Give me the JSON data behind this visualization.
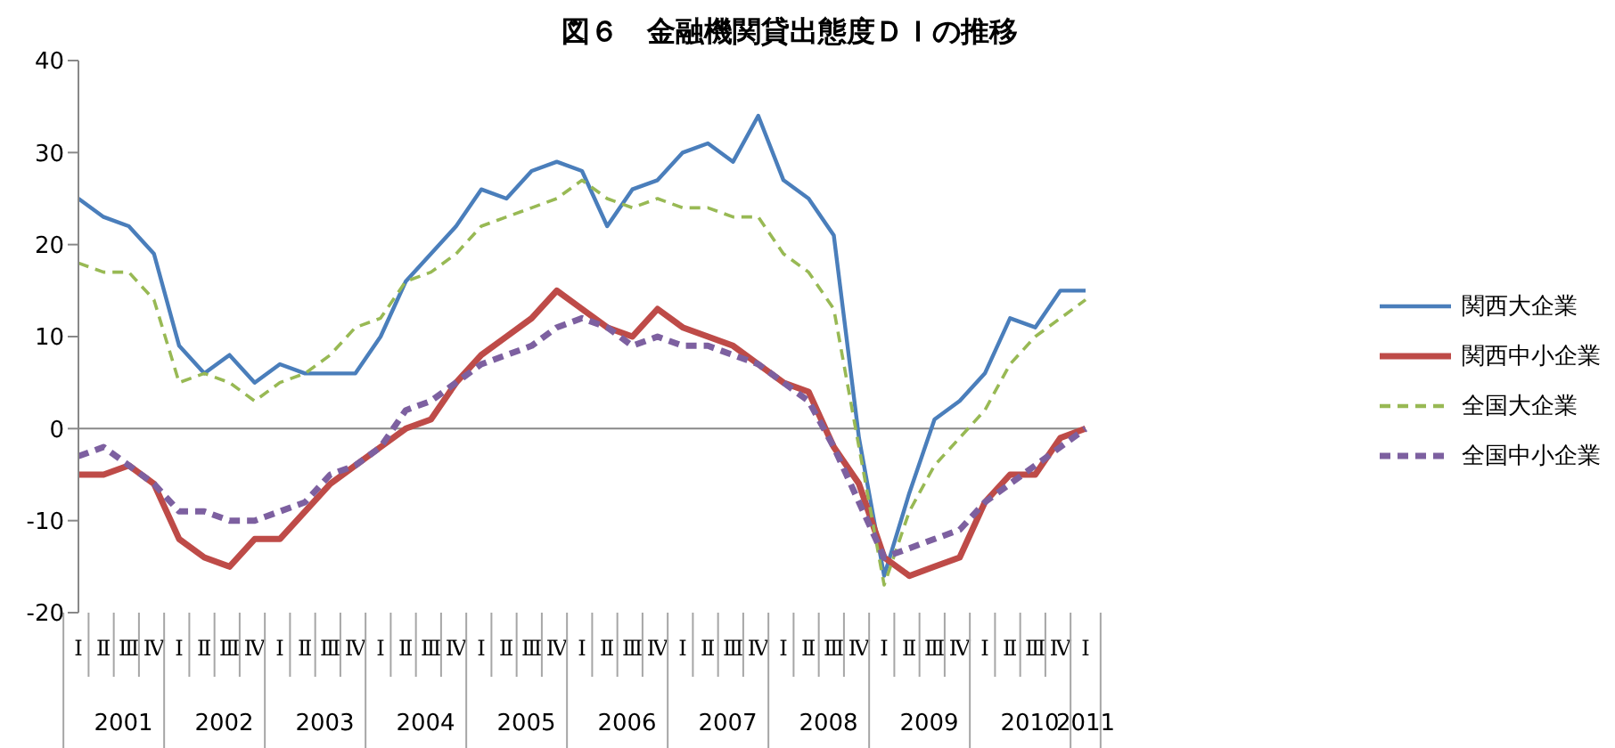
{
  "chart_data": {
    "type": "line",
    "title": "図６　金融機関貸出態度ＤＩの推移",
    "categories": [
      "Ⅰ",
      "Ⅱ",
      "Ⅲ",
      "Ⅳ",
      "Ⅰ",
      "Ⅱ",
      "Ⅲ",
      "Ⅳ",
      "Ⅰ",
      "Ⅱ",
      "Ⅲ",
      "Ⅳ",
      "Ⅰ",
      "Ⅱ",
      "Ⅲ",
      "Ⅳ",
      "Ⅰ",
      "Ⅱ",
      "Ⅲ",
      "Ⅳ",
      "Ⅰ",
      "Ⅱ",
      "Ⅲ",
      "Ⅳ",
      "Ⅰ",
      "Ⅱ",
      "Ⅲ",
      "Ⅳ",
      "Ⅰ",
      "Ⅱ",
      "Ⅲ",
      "Ⅳ",
      "Ⅰ",
      "Ⅱ",
      "Ⅲ",
      "Ⅳ",
      "Ⅰ",
      "Ⅱ",
      "Ⅲ",
      "Ⅳ",
      "Ⅰ"
    ],
    "annotations": [
      "2001",
      "2002",
      "2003",
      "2004",
      "2005",
      "2006",
      "2007",
      "2008",
      "2009",
      "2010",
      "2011"
    ],
    "series": [
      {
        "name": "関西大企業",
        "color": "#4a7ebb",
        "line_style": "solid",
        "values": [
          25,
          23,
          22,
          19,
          9,
          6,
          8,
          5,
          7,
          6,
          6,
          6,
          10,
          16,
          19,
          22,
          26,
          25,
          28,
          29,
          28,
          22,
          26,
          27,
          30,
          31,
          29,
          34,
          27,
          25,
          21,
          -1,
          -16,
          -7,
          1,
          3,
          6,
          12,
          11,
          15,
          15
        ]
      },
      {
        "name": "関西中小企業",
        "color": "#be4b48",
        "line_style": "solid",
        "values": [
          -5,
          -5,
          -4,
          -6,
          -12,
          -14,
          -15,
          -12,
          -12,
          -9,
          -6,
          -4,
          -2,
          0,
          1,
          5,
          8,
          10,
          12,
          15,
          13,
          11,
          10,
          13,
          11,
          10,
          9,
          7,
          5,
          4,
          -2,
          -6,
          -14,
          -16,
          -15,
          -14,
          -8,
          -5,
          -5,
          -1,
          0
        ]
      },
      {
        "name": "全国大企業",
        "color": "#98b954",
        "line_style": "dashed",
        "values": [
          18,
          17,
          17,
          14,
          5,
          6,
          5,
          3,
          5,
          6,
          8,
          11,
          12,
          16,
          17,
          19,
          22,
          23,
          24,
          25,
          27,
          25,
          24,
          25,
          24,
          24,
          23,
          23,
          19,
          17,
          13,
          -2,
          -17,
          -9,
          -4,
          -1,
          2,
          7,
          10,
          12,
          14
        ]
      },
      {
        "name": "全国中小企業",
        "color": "#7d60a0",
        "line_style": "dashed",
        "values": [
          -3,
          -2,
          -4,
          -6,
          -9,
          -9,
          -10,
          -10,
          -9,
          -8,
          -5,
          -4,
          -2,
          2,
          3,
          5,
          7,
          8,
          9,
          11,
          12,
          11,
          9,
          10,
          9,
          9,
          8,
          7,
          5,
          3,
          -2,
          -8,
          -14,
          -13,
          -12,
          -11,
          -8,
          -6,
          -4,
          -2,
          0
        ]
      }
    ],
    "ylim": [
      -20,
      40
    ],
    "yticks": [
      -20,
      -10,
      0,
      10,
      20,
      30,
      40
    ],
    "ref_lines": [
      {
        "axis": "y",
        "value": 0,
        "color": "#888888"
      }
    ],
    "grid": false,
    "legend": "right",
    "marker": "none"
  }
}
